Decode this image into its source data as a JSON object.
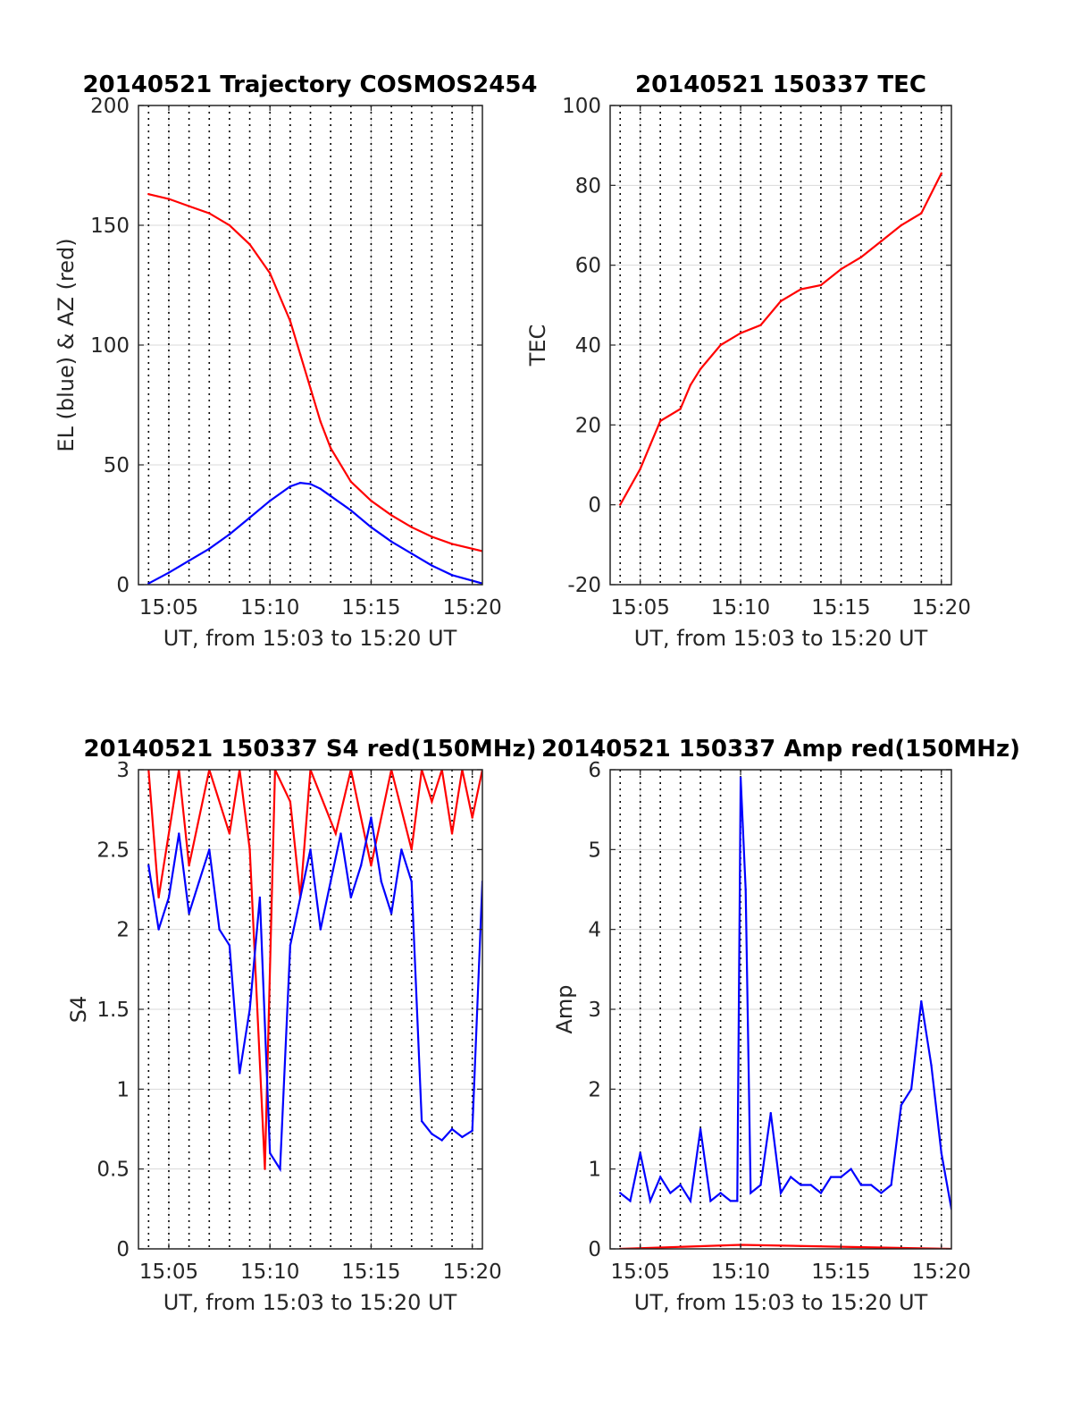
{
  "colors": {
    "red": "#ff0000",
    "blue": "#0000ff",
    "grid": "#d9d9d9",
    "axis": "#262626",
    "background": "#ffffff"
  },
  "chart_data": [
    {
      "type": "line",
      "title": "20140521 Trajectory COSMOS2454",
      "xlabel": "UT, from 15:03 to 15:20 UT",
      "ylabel": "EL (blue) & AZ (red)",
      "xlim": [
        "15:03:30",
        "15:20:30"
      ],
      "ylim": [
        0,
        200
      ],
      "x_ticks": [
        "15:05",
        "15:10",
        "15:15",
        "15:20"
      ],
      "y_ticks": [
        "0",
        "50",
        "100",
        "150",
        "200"
      ],
      "grid": true,
      "series": [
        {
          "color": "red",
          "x": [
            "15:04",
            "15:05",
            "15:06",
            "15:07",
            "15:08",
            "15:09",
            "15:10",
            "15:11",
            "15:11:30",
            "15:12",
            "15:12:30",
            "15:13",
            "15:14",
            "15:15",
            "15:16",
            "15:17",
            "15:18",
            "15:19",
            "15:20:30"
          ],
          "values": [
            163,
            161,
            158,
            155,
            150,
            142,
            130,
            110,
            96,
            82,
            68,
            57,
            43,
            35,
            29,
            24,
            20,
            17,
            14
          ]
        },
        {
          "color": "blue",
          "x": [
            "15:04",
            "15:05",
            "15:06",
            "15:07",
            "15:08",
            "15:09",
            "15:10",
            "15:11",
            "15:11:30",
            "15:12",
            "15:12:30",
            "15:13",
            "15:14",
            "15:15",
            "15:16",
            "15:17",
            "15:18",
            "15:19",
            "15:20:30"
          ],
          "values": [
            0.5,
            5,
            10,
            15,
            21,
            28,
            35,
            41,
            42.5,
            42,
            40,
            37,
            31,
            24,
            18,
            13,
            8,
            4,
            0.5
          ]
        }
      ]
    },
    {
      "type": "line",
      "title": "20140521 150337 TEC",
      "xlabel": "UT, from 15:03 to 15:20 UT",
      "ylabel": "TEC",
      "xlim": [
        "15:03:30",
        "15:20:30"
      ],
      "ylim": [
        -20,
        100
      ],
      "x_ticks": [
        "15:05",
        "15:10",
        "15:15",
        "15:20"
      ],
      "y_ticks": [
        "-20",
        "0",
        "20",
        "40",
        "60",
        "80",
        "100"
      ],
      "grid": true,
      "series": [
        {
          "color": "red",
          "x": [
            "15:04",
            "15:05",
            "15:05:30",
            "15:06",
            "15:07",
            "15:07:30",
            "15:08",
            "15:09",
            "15:10",
            "15:11",
            "15:12",
            "15:13",
            "15:14",
            "15:15",
            "15:16",
            "15:17",
            "15:18",
            "15:19",
            "15:20"
          ],
          "values": [
            0,
            9,
            15,
            21,
            24,
            30,
            34,
            40,
            43,
            45,
            51,
            54,
            55,
            59,
            62,
            66,
            70,
            73,
            83
          ]
        }
      ]
    },
    {
      "type": "line",
      "title": "20140521 150337 S4 red(150MHz)",
      "xlabel": "UT, from 15:03 to 15:20 UT",
      "ylabel": "S4",
      "xlim": [
        "15:03:30",
        "15:20:30"
      ],
      "ylim": [
        0,
        3
      ],
      "x_ticks": [
        "15:05",
        "15:10",
        "15:15",
        "15:20"
      ],
      "y_ticks": [
        "0",
        "0.5",
        "1",
        "1.5",
        "2",
        "2.5",
        "3"
      ],
      "grid": true,
      "series": [
        {
          "color": "red",
          "x": [
            "15:04",
            "15:04:30",
            "15:05:30",
            "15:06",
            "15:07",
            "15:08",
            "15:08:30",
            "15:09",
            "15:09:45",
            "15:10:15",
            "15:11",
            "15:11:30",
            "15:12",
            "15:13:15",
            "15:14",
            "15:15",
            "15:16",
            "15:17",
            "15:17:30",
            "15:18",
            "15:18:30",
            "15:19",
            "15:19:30",
            "15:20",
            "15:20:30"
          ],
          "values": [
            3,
            2.2,
            3,
            2.4,
            3,
            2.6,
            3,
            2.5,
            0.5,
            3,
            2.8,
            2.2,
            3,
            2.6,
            3,
            2.4,
            3,
            2.5,
            3,
            2.8,
            3,
            2.6,
            3,
            2.7,
            3
          ]
        },
        {
          "color": "blue",
          "x": [
            "15:04",
            "15:04:30",
            "15:05",
            "15:05:30",
            "15:06",
            "15:06:30",
            "15:07",
            "15:07:30",
            "15:08",
            "15:08:30",
            "15:09",
            "15:09:30",
            "15:10",
            "15:10:30",
            "15:11",
            "15:11:30",
            "15:12",
            "15:12:30",
            "15:13",
            "15:13:30",
            "15:14",
            "15:14:30",
            "15:15",
            "15:15:30",
            "15:16",
            "15:16:30",
            "15:17",
            "15:17:30",
            "15:18",
            "15:18:30",
            "15:19",
            "15:19:30",
            "15:20",
            "15:20:30"
          ],
          "values": [
            2.4,
            2.0,
            2.2,
            2.6,
            2.1,
            2.3,
            2.5,
            2.0,
            1.9,
            1.1,
            1.5,
            2.2,
            0.6,
            0.5,
            1.9,
            2.2,
            2.5,
            2.0,
            2.3,
            2.6,
            2.2,
            2.4,
            2.7,
            2.3,
            2.1,
            2.5,
            2.3,
            0.8,
            0.72,
            0.68,
            0.75,
            0.7,
            0.74,
            2.3
          ]
        }
      ]
    },
    {
      "type": "line",
      "title": "20140521 150337 Amp red(150MHz)",
      "xlabel": "UT, from 15:03 to 15:20 UT",
      "ylabel": "Amp",
      "xlim": [
        "15:03:30",
        "15:20:30"
      ],
      "ylim": [
        0,
        6
      ],
      "x_ticks": [
        "15:05",
        "15:10",
        "15:15",
        "15:20"
      ],
      "y_ticks": [
        "0",
        "1",
        "2",
        "3",
        "4",
        "5",
        "6"
      ],
      "grid": true,
      "series": [
        {
          "color": "red",
          "x": [
            "15:04",
            "15:10",
            "15:20:30"
          ],
          "values": [
            0,
            0.05,
            0
          ]
        },
        {
          "color": "blue",
          "x": [
            "15:04",
            "15:04:30",
            "15:05",
            "15:05:30",
            "15:06",
            "15:06:30",
            "15:07",
            "15:07:30",
            "15:08",
            "15:08:30",
            "15:09",
            "15:09:30",
            "15:09:50",
            "15:10",
            "15:10:15",
            "15:10:30",
            "15:11",
            "15:11:30",
            "15:12",
            "15:12:30",
            "15:13",
            "15:13:30",
            "15:14",
            "15:14:30",
            "15:15",
            "15:15:30",
            "15:16",
            "15:16:30",
            "15:17",
            "15:17:30",
            "15:18",
            "15:18:30",
            "15:19",
            "15:19:30",
            "15:20",
            "15:20:30"
          ],
          "values": [
            0.7,
            0.6,
            1.2,
            0.6,
            0.9,
            0.7,
            0.8,
            0.6,
            1.5,
            0.6,
            0.7,
            0.6,
            0.6,
            5.9,
            4.5,
            0.7,
            0.8,
            1.7,
            0.7,
            0.9,
            0.8,
            0.8,
            0.7,
            0.9,
            0.9,
            1.0,
            0.8,
            0.8,
            0.7,
            0.8,
            1.8,
            2.0,
            3.1,
            2.3,
            1.2,
            0.5
          ]
        }
      ]
    }
  ]
}
